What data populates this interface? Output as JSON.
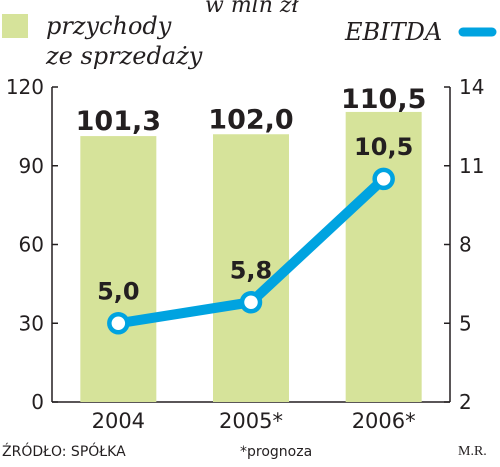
{
  "chart_data": {
    "type": "bar+line",
    "unit_label": "w mln zł",
    "categories": [
      "2004",
      "2005*",
      "2006*"
    ],
    "bars": {
      "name": "przychody ze sprzedaży",
      "name_lines": [
        "przychody",
        "ze sprzedaży"
      ],
      "values": [
        101.3,
        102.0,
        110.5
      ],
      "labels": [
        "101,3",
        "102,0",
        "110,5"
      ],
      "color": "#d6e39a"
    },
    "line": {
      "name": "EBITDA",
      "values": [
        5.0,
        5.8,
        10.5
      ],
      "labels": [
        "5,0",
        "5,8",
        "10,5"
      ],
      "color": "#00a3e0"
    },
    "left_axis": {
      "ylim": [
        0,
        120
      ],
      "ticks": [
        "0",
        "30",
        "60",
        "90",
        "120"
      ],
      "tick_values": [
        0,
        30,
        60,
        90,
        120
      ]
    },
    "right_axis": {
      "ylim": [
        2,
        14
      ],
      "ticks": [
        "2",
        "5",
        "8",
        "11",
        "14"
      ],
      "tick_values": [
        2,
        5,
        8,
        11,
        14
      ]
    },
    "grid": false,
    "legend_placement": "top"
  },
  "footer": {
    "source": "ŹRÓDŁO: SPÓŁKA",
    "note": "*prognoza",
    "author": "M.R."
  }
}
